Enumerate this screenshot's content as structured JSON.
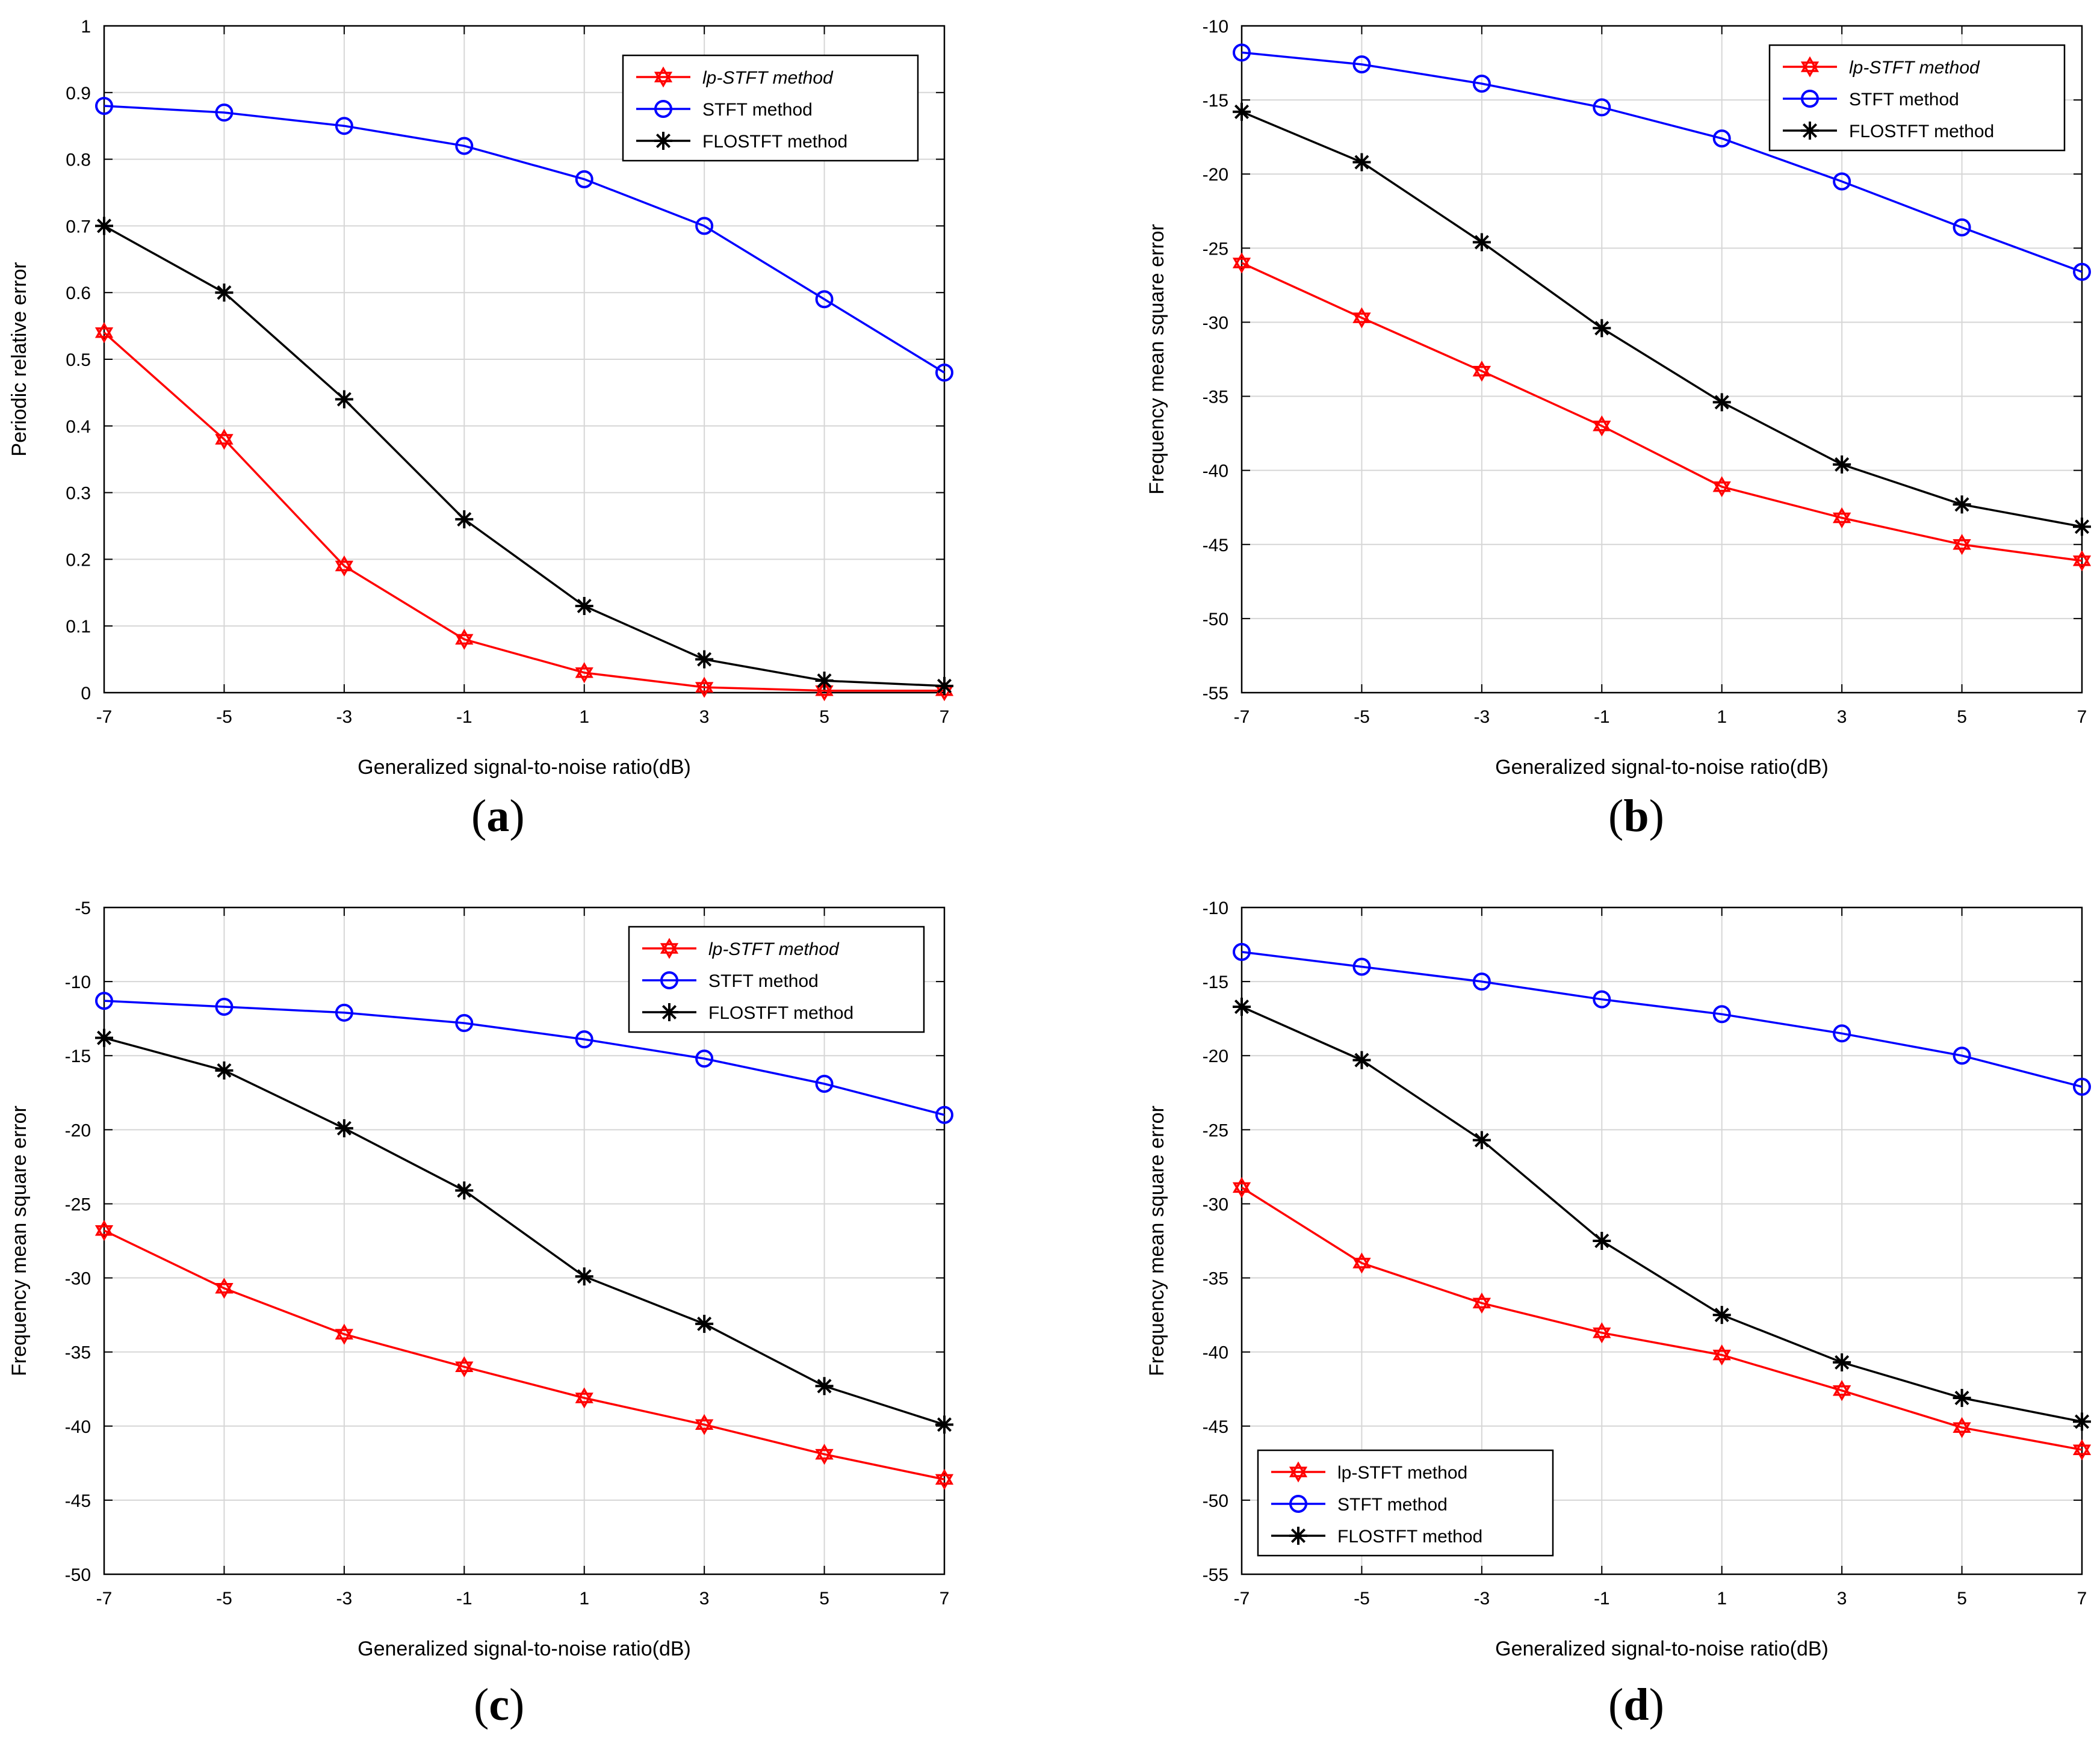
{
  "chart_data": [
    {
      "id": "a",
      "type": "line",
      "caption": "a",
      "xlabel": "Generalized signal-to-noise ratio(dB)",
      "ylabel": "Periodic relative error",
      "x": [
        -7,
        -5,
        -3,
        -1,
        1,
        3,
        5,
        7
      ],
      "xticks": [
        "-7",
        "-5",
        "-3",
        "-1",
        "1",
        "3",
        "5",
        "7"
      ],
      "ylim": [
        0,
        1
      ],
      "yticks": [
        "0",
        "0.1",
        "0.2",
        "0.3",
        "0.4",
        "0.5",
        "0.6",
        "0.7",
        "0.8",
        "0.9",
        "1"
      ],
      "grid": true,
      "legend": {
        "position": "top-right",
        "italic_first": true
      },
      "series": [
        {
          "name": "lp-STFT method",
          "color": "#ff0000",
          "marker": "hexagram",
          "values": [
            0.54,
            0.38,
            0.19,
            0.08,
            0.03,
            0.008,
            0.003,
            0.003
          ]
        },
        {
          "name": "STFT method",
          "color": "#0000ff",
          "marker": "circle",
          "values": [
            0.88,
            0.87,
            0.85,
            0.82,
            0.77,
            0.7,
            0.59,
            0.48
          ]
        },
        {
          "name": "FLOSTFT method",
          "color": "#000000",
          "marker": "asterisk",
          "values": [
            0.7,
            0.6,
            0.44,
            0.26,
            0.13,
            0.05,
            0.018,
            0.01
          ]
        }
      ]
    },
    {
      "id": "b",
      "type": "line",
      "caption": "b",
      "xlabel": "Generalized signal-to-noise ratio(dB)",
      "ylabel": "Frequency mean square error",
      "x": [
        -7,
        -5,
        -3,
        -1,
        1,
        3,
        5,
        7
      ],
      "xticks": [
        "-7",
        "-5",
        "-3",
        "-1",
        "1",
        "3",
        "5",
        "7"
      ],
      "ylim": [
        -55,
        -10
      ],
      "yticks": [
        "-55",
        "-50",
        "-45",
        "-40",
        "-35",
        "-30",
        "-25",
        "-20",
        "-15",
        "-10"
      ],
      "grid": true,
      "legend": {
        "position": "top-right",
        "italic_first": true
      },
      "series": [
        {
          "name": "lp-STFT method",
          "color": "#ff0000",
          "marker": "hexagram",
          "values": [
            -26,
            -29.7,
            -33.3,
            -37,
            -41.1,
            -43.2,
            -45,
            -46.1
          ]
        },
        {
          "name": "STFT method",
          "color": "#0000ff",
          "marker": "circle",
          "values": [
            -11.8,
            -12.6,
            -13.9,
            -15.5,
            -17.6,
            -20.5,
            -23.6,
            -26.6
          ]
        },
        {
          "name": "FLOSTFT method",
          "color": "#000000",
          "marker": "asterisk",
          "values": [
            -15.8,
            -19.2,
            -24.6,
            -30.4,
            -35.4,
            -39.6,
            -42.3,
            -43.8
          ]
        }
      ]
    },
    {
      "id": "c",
      "type": "line",
      "caption": "c",
      "xlabel": "Generalized signal-to-noise ratio(dB)",
      "ylabel": "Frequency mean square error",
      "x": [
        -7,
        -5,
        -3,
        -1,
        1,
        3,
        5,
        7
      ],
      "xticks": [
        "-7",
        "-5",
        "-3",
        "-1",
        "1",
        "3",
        "5",
        "7"
      ],
      "ylim": [
        -50,
        -5
      ],
      "yticks": [
        "-50",
        "-45",
        "-40",
        "-35",
        "-30",
        "-25",
        "-20",
        "-15",
        "-10",
        "-5"
      ],
      "grid": true,
      "legend": {
        "position": "top-right",
        "italic_first": true
      },
      "series": [
        {
          "name": "lp-STFT method",
          "color": "#ff0000",
          "marker": "hexagram",
          "values": [
            -26.8,
            -30.7,
            -33.8,
            -36,
            -38.1,
            -39.9,
            -41.9,
            -43.6
          ]
        },
        {
          "name": "STFT method",
          "color": "#0000ff",
          "marker": "circle",
          "values": [
            -11.3,
            -11.7,
            -12.1,
            -12.8,
            -13.9,
            -15.2,
            -16.9,
            -19
          ]
        },
        {
          "name": "FLOSTFT method",
          "color": "#000000",
          "marker": "asterisk",
          "values": [
            -13.8,
            -16,
            -19.9,
            -24.1,
            -29.9,
            -33.1,
            -37.3,
            -39.9
          ]
        }
      ]
    },
    {
      "id": "d",
      "type": "line",
      "caption": "d",
      "xlabel": "Generalized signal-to-noise ratio(dB)",
      "ylabel": "Frequency mean square error",
      "x": [
        -7,
        -5,
        -3,
        -1,
        1,
        3,
        5,
        7
      ],
      "xticks": [
        "-7",
        "-5",
        "-3",
        "-1",
        "1",
        "3",
        "5",
        "7"
      ],
      "ylim": [
        -55,
        -10
      ],
      "yticks": [
        "-55",
        "-50",
        "-45",
        "-40",
        "-35",
        "-30",
        "-25",
        "-20",
        "-15",
        "-10"
      ],
      "grid": true,
      "legend": {
        "position": "bottom-left",
        "italic_first": false
      },
      "series": [
        {
          "name": "lp-STFT method",
          "color": "#ff0000",
          "marker": "hexagram",
          "values": [
            -28.9,
            -34,
            -36.7,
            -38.7,
            -40.2,
            -42.6,
            -45.1,
            -46.6
          ]
        },
        {
          "name": "STFT method",
          "color": "#0000ff",
          "marker": "circle",
          "values": [
            -13,
            -14,
            -15,
            -16.2,
            -17.2,
            -18.5,
            -20,
            -22.1
          ]
        },
        {
          "name": "FLOSTFT method",
          "color": "#000000",
          "marker": "asterisk",
          "values": [
            -16.7,
            -20.3,
            -25.7,
            -32.5,
            -37.5,
            -40.7,
            -43.1,
            -44.7
          ]
        }
      ]
    }
  ]
}
